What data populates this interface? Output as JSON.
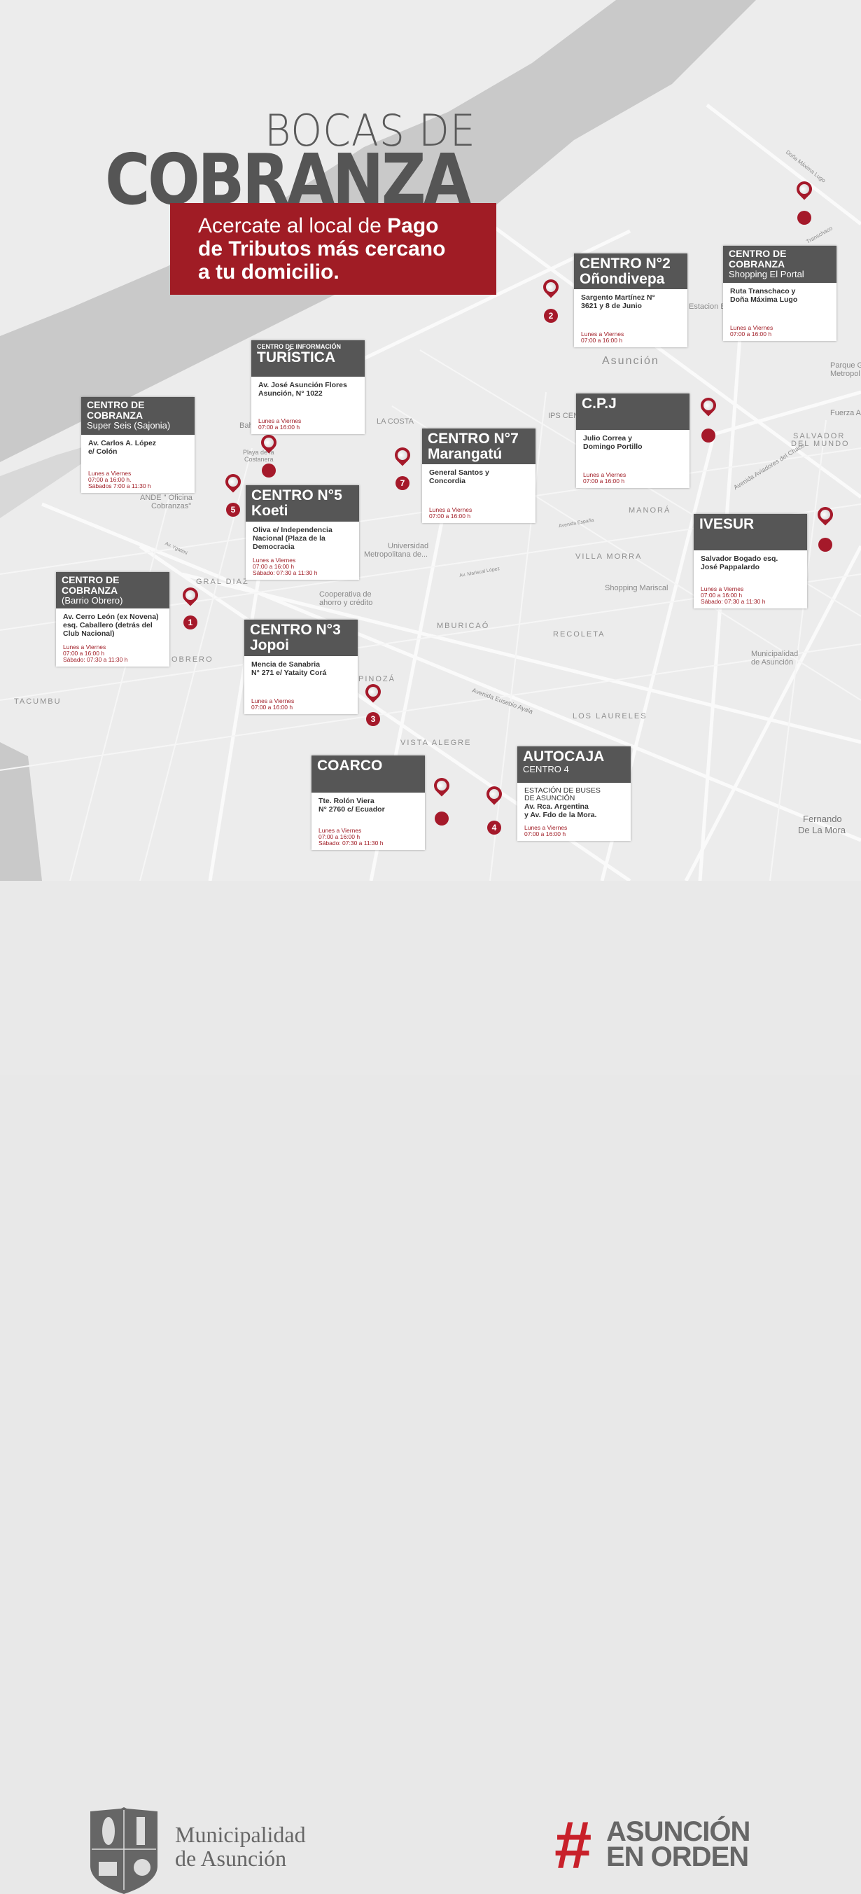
{
  "header": {
    "title_line1": "BOCAS DE",
    "title_line2": "COBRANZA",
    "subtitle_part1": "Acercate al local de ",
    "subtitle_bold1": "Pago",
    "subtitle_bold2": "de Tributos más cercano",
    "subtitle_bold3": "a tu domicilio."
  },
  "colors": {
    "accent": "#a01c25",
    "card_header": "#565656",
    "map_bg": "#ececec",
    "river": "#c8c8c8"
  },
  "map_labels": {
    "places": [
      "Asunción",
      "LA COSTA",
      "MANORÁ",
      "VILLA MORRA",
      "SALVADOR",
      "DEL MUNDO",
      "GRAL DIAZ",
      "OBRERO",
      "TACUMBU",
      "MBURICAÓ",
      "RECOLETA",
      "VISTA ALEGRE",
      "LOS LAURELES",
      "PINOZÁ",
      "Fernando",
      "De La Mora"
    ],
    "pois": [
      "Shopping Mariscal",
      "Municipalidad",
      "de Asunción",
      "Universidad",
      "Metropolitana de...",
      "Cooperativa de",
      "ahorro y crédito",
      "ANDE \" Oficina",
      "Cobranzas\"",
      "Playa de la",
      "Costanera",
      "IPS CEN",
      "Estacion B",
      "Parque G",
      "Metropol",
      "Fuerza A",
      "Bah"
    ],
    "streets": [
      "Avenida Aviadores del Chaco",
      "Avenida Eusebio Ayala",
      "Av. Mariscal López",
      "Avenida España",
      "Av. Ygatimi",
      "Doña Máxima Lugo",
      "Transchaco"
    ]
  },
  "locations": [
    {
      "number": null,
      "kicker": "",
      "name": "CENTRO DE COBRANZA",
      "subname": "Super Seis (Sajonia)",
      "address": "Av. Carlos A. López\ne/ Colón",
      "hours": "Lunes a Viernes\n07:00 a 16:00 h.\nSábados 7:00 a 11:30 h"
    },
    {
      "number": null,
      "kicker": "CENTRO DE INFORMACIÓN",
      "name": "TURÍSTICA",
      "subname": "",
      "address": "Av. José Asunción Flores\nAsunción, N° 1022",
      "hours": "Lunes a Viernes\n07:00 a 16:00 h"
    },
    {
      "number": "2",
      "kicker": "",
      "name": "CENTRO N°2",
      "subname": "Oñondivepa",
      "address": "Sargento Martínez N°\n3621 y 8 de Junio",
      "hours": "Lunes a Viernes\n07:00 a 16:00 h"
    },
    {
      "number": null,
      "kicker": "",
      "name": "CENTRO DE COBRANZA",
      "subname": "Shopping El Portal",
      "address": "Ruta Transchaco y\nDoña Máxima Lugo",
      "hours": "Lunes a Viernes\n07:00 a 16:00 h"
    },
    {
      "number": "7",
      "kicker": "",
      "name": "CENTRO N°7",
      "subname": "Marangatú",
      "address": "General Santos y\nConcordia",
      "hours": "Lunes a Viernes\n07:00 a 16:00 h"
    },
    {
      "number": null,
      "kicker": "",
      "name": "C.P.J",
      "subname": "",
      "address": "Julio Correa y\nDomingo Portillo",
      "hours": "Lunes a Viernes\n07:00 a 16:00 h"
    },
    {
      "number": "5",
      "kicker": "",
      "name": "CENTRO N°5",
      "subname": "Koeti",
      "address": "Oliva e/ Independencia\nNacional (Plaza de la\nDemocracia",
      "hours": "Lunes a Viernes\n07:00 a 16:00 h\nSábado: 07:30 a 11:30 h"
    },
    {
      "number": null,
      "kicker": "",
      "name": "IVESUR",
      "subname": "",
      "address": "Salvador Bogado esq.\nJosé Pappalardo",
      "hours": "Lunes a Viernes\n07:00 a 16:00 h\nSábado: 07:30 a 11:30 h"
    },
    {
      "number": "1",
      "kicker": "",
      "name": "CENTRO DE COBRANZA",
      "subname": "(Barrio Obrero)",
      "address": "Av. Cerro León (ex Novena)\nesq. Caballero (detrás del\nClub Nacional)",
      "hours": "Lunes a Viernes\n07:00 a 16:00 h\nSábado: 07:30 a 11:30 h"
    },
    {
      "number": "3",
      "kicker": "",
      "name": "CENTRO N°3",
      "subname": "Jopoi",
      "address": "Mencia de Sanabria\nN° 271 e/ Yataity Corá",
      "hours": "Lunes a Viernes\n07:00 a 16:00 h"
    },
    {
      "number": null,
      "kicker": "",
      "name": "COARCO",
      "subname": "",
      "address": "Tte. Rolón Viera\nN° 2760 c/ Ecuador",
      "hours": "Lunes a Viernes\n07:00 a 16:00 h\nSábado: 07:30 a 11:30 h"
    },
    {
      "number": "4",
      "kicker": "",
      "name": "AUTOCAJA",
      "subname": "CENTRO 4",
      "address_top": "ESTACIÓN DE BUSES\nDE ASUNCIÓN",
      "address": "Av. Rca. Argentina\ny Av. Fdo de la Mora.",
      "hours": "Lunes a Viernes\n07:00 a 16:00 h"
    }
  ],
  "footer": {
    "municipality_line1": "Municipalidad",
    "municipality_line2": "de Asunción",
    "campaign_hash": "#",
    "campaign_line1": "ASUNCIÓN",
    "campaign_line2": "EN ORDEN"
  }
}
